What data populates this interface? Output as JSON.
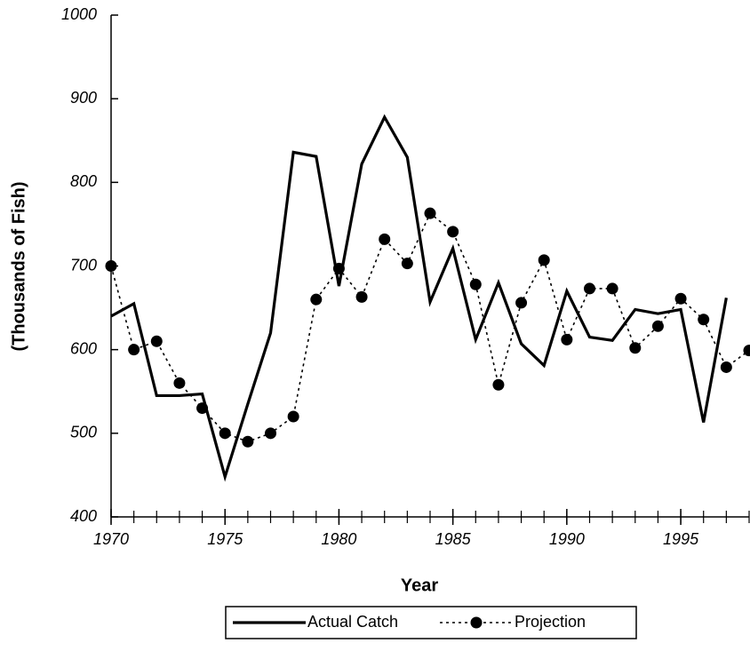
{
  "chart_data": {
    "type": "line",
    "x_label": "Year",
    "y_label": "(Thousands of Fish)",
    "x": [
      1970,
      1971,
      1972,
      1973,
      1974,
      1975,
      1976,
      1977,
      1978,
      1979,
      1980,
      1981,
      1982,
      1983,
      1984,
      1985,
      1986,
      1987,
      1988,
      1989,
      1990,
      1991,
      1992,
      1993,
      1994,
      1995,
      1996,
      1997,
      1998
    ],
    "series": [
      {
        "name": "Actual Catch",
        "color": "#000000",
        "style": "solid",
        "values": [
          640,
          655,
          545,
          545,
          547,
          448,
          535,
          620,
          836,
          831,
          676,
          822,
          878,
          830,
          657,
          721,
          612,
          680,
          607,
          581,
          670,
          615,
          611,
          648,
          643,
          648,
          513,
          662,
          null
        ]
      },
      {
        "name": "Projection",
        "color": "#000000",
        "style": "dotted",
        "values": [
          700,
          600,
          610,
          560,
          530,
          500,
          490,
          500,
          520,
          660,
          697,
          663,
          732,
          703,
          763,
          741,
          678,
          558,
          656,
          707,
          612,
          673,
          673,
          602,
          628,
          661,
          636,
          579,
          599
        ]
      }
    ],
    "xlim": [
      1970,
      1998
    ],
    "xticks": [
      1970,
      1975,
      1980,
      1985,
      1990,
      1995
    ],
    "ylim": [
      400,
      1000
    ],
    "yticks": [
      400,
      500,
      600,
      700,
      800,
      900,
      1000
    ],
    "legend": "bottom",
    "grid": false
  }
}
